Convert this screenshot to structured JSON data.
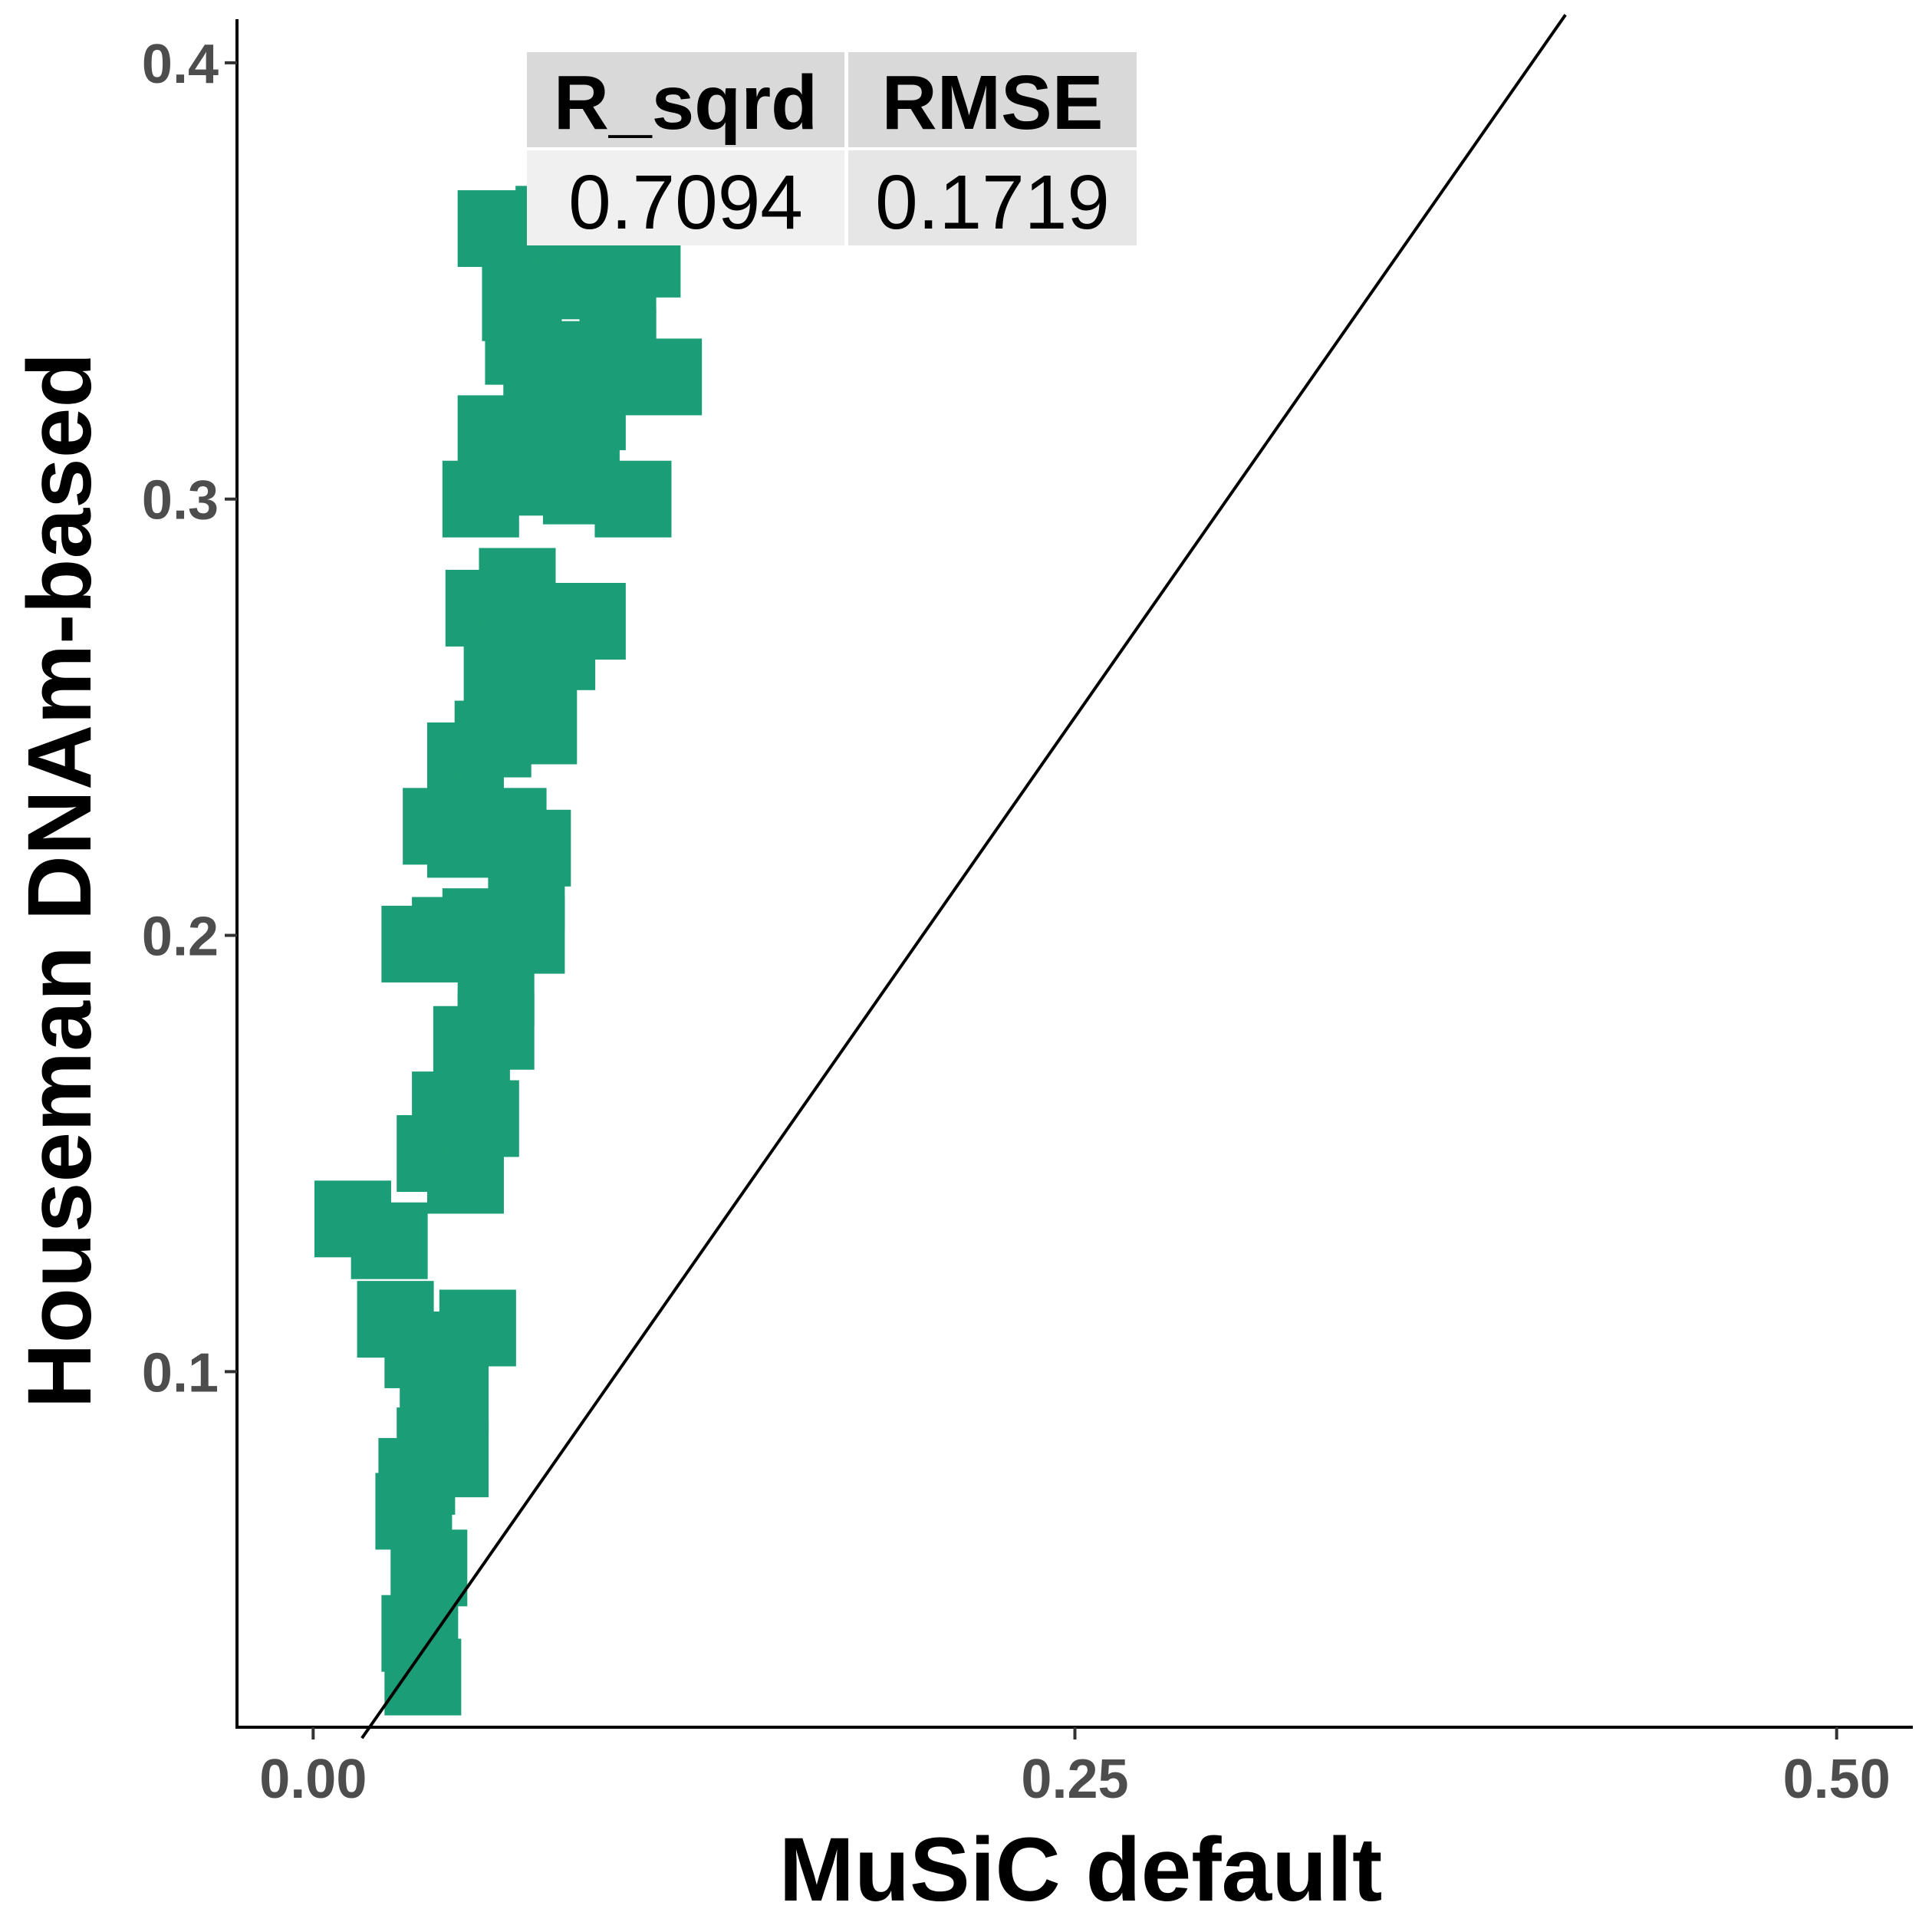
{
  "chart_data": {
    "type": "scatter",
    "xlabel": "MuSiC default",
    "ylabel": "Houseman DNAm-based",
    "xlim": [
      -0.025,
      0.525
    ],
    "ylim": [
      0.0185,
      0.41
    ],
    "x_ticks": [
      "0.00",
      "0.25",
      "0.50"
    ],
    "x_tick_values": [
      0.0,
      0.25,
      0.5
    ],
    "y_ticks": [
      "0.1",
      "0.2",
      "0.3",
      "0.4"
    ],
    "y_tick_values": [
      0.1,
      0.2,
      0.3,
      0.4
    ],
    "grid": false,
    "point_shape": "square",
    "point_color": "#1b9e77",
    "reference_line": {
      "type": "identity",
      "x": [
        0.016,
        0.411
      ],
      "y": [
        0.016,
        0.411
      ],
      "color": "#000000"
    },
    "series": [
      {
        "points": [
          [
            0.036,
            0.03
          ],
          [
            0.035,
            0.04
          ],
          [
            0.038,
            0.055
          ],
          [
            0.033,
            0.068
          ],
          [
            0.034,
            0.076
          ],
          [
            0.045,
            0.08
          ],
          [
            0.04,
            0.083
          ],
          [
            0.027,
            0.112
          ],
          [
            0.036,
            0.105
          ],
          [
            0.041,
            0.1
          ],
          [
            0.045,
            0.095
          ],
          [
            0.054,
            0.11
          ],
          [
            0.013,
            0.135
          ],
          [
            0.025,
            0.13
          ],
          [
            0.04,
            0.15
          ],
          [
            0.05,
            0.145
          ],
          [
            0.055,
            0.158
          ],
          [
            0.045,
            0.16
          ],
          [
            0.052,
            0.175
          ],
          [
            0.06,
            0.178
          ],
          [
            0.06,
            0.188
          ],
          [
            0.035,
            0.198
          ],
          [
            0.045,
            0.2
          ],
          [
            0.055,
            0.202
          ],
          [
            0.07,
            0.2
          ],
          [
            0.042,
            0.225
          ],
          [
            0.05,
            0.222
          ],
          [
            0.064,
            0.225
          ],
          [
            0.072,
            0.22
          ],
          [
            0.05,
            0.24
          ],
          [
            0.059,
            0.245
          ],
          [
            0.074,
            0.248
          ],
          [
            0.062,
            0.262
          ],
          [
            0.08,
            0.265
          ],
          [
            0.056,
            0.275
          ],
          [
            0.067,
            0.28
          ],
          [
            0.09,
            0.272
          ],
          [
            0.055,
            0.3
          ],
          [
            0.07,
            0.305
          ],
          [
            0.088,
            0.303
          ],
          [
            0.105,
            0.3
          ],
          [
            0.06,
            0.315
          ],
          [
            0.075,
            0.318
          ],
          [
            0.09,
            0.32
          ],
          [
            0.069,
            0.335
          ],
          [
            0.08,
            0.332
          ],
          [
            0.1,
            0.335
          ],
          [
            0.115,
            0.328
          ],
          [
            0.068,
            0.345
          ],
          [
            0.085,
            0.35
          ],
          [
            0.1,
            0.345
          ],
          [
            0.079,
            0.363
          ],
          [
            0.06,
            0.362
          ],
          [
            0.095,
            0.36
          ],
          [
            0.108,
            0.355
          ],
          [
            0.07,
            0.21
          ]
        ]
      }
    ]
  },
  "stats_table": {
    "headers": [
      "R_sqrd",
      "RMSE"
    ],
    "values": [
      "0.7094",
      "0.1719"
    ],
    "header_fill": "#d9d9d9",
    "value_fills": [
      "#f0f0f0",
      "#e6e6e6"
    ]
  }
}
